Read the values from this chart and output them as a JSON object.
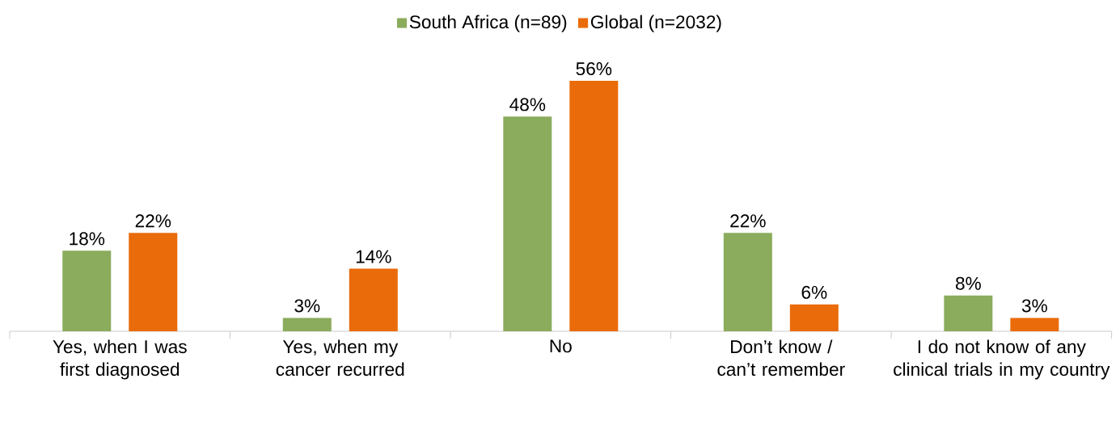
{
  "chart_data": {
    "type": "bar",
    "categories": [
      "Yes, when I was first diagnosed",
      "Yes, when my cancer recurred",
      "No",
      "Don’t know / can’t remember",
      "I do not know of any clinical trials in my country"
    ],
    "series": [
      {
        "name": "South Africa (n=89)",
        "color": "#8aac5c",
        "values": [
          18,
          3,
          48,
          22,
          8
        ],
        "value_labels": [
          "18%",
          "3%",
          "48%",
          "22%",
          "8%"
        ]
      },
      {
        "name": "Global (n=2032)",
        "color": "#ea6b0a",
        "values": [
          22,
          14,
          56,
          6,
          3
        ],
        "value_labels": [
          "22%",
          "14%",
          "56%",
          "6%",
          "3%"
        ]
      }
    ],
    "legend": "top"
  }
}
